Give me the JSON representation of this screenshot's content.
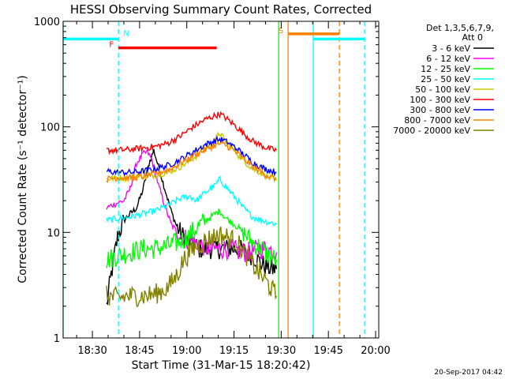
{
  "chart_data": {
    "type": "line",
    "title": "HESSI Observing Summary Count Rates, Corrected",
    "xlabel": "Start Time (31-Mar-15 18:20:42)",
    "ylabel": "Corrected Count Rate (s⁻¹ detector⁻¹)",
    "y_scale": "log",
    "ylim": [
      1,
      1000
    ],
    "xlim_minutes": [
      20.7,
      121
    ],
    "x_ticks": [
      {
        "label": "18:30",
        "minute": 30
      },
      {
        "label": "18:45",
        "minute": 45
      },
      {
        "label": "19:00",
        "minute": 60
      },
      {
        "label": "19:15",
        "minute": 75
      },
      {
        "label": "19:30",
        "minute": 90
      },
      {
        "label": "19:45",
        "minute": 105
      },
      {
        "label": "20:00",
        "minute": 120
      }
    ],
    "y_ticks": [
      {
        "label": "1",
        "value": 1
      },
      {
        "label": "10",
        "value": 10
      },
      {
        "label": "100",
        "value": 100
      },
      {
        "label": "1000",
        "value": 1000
      }
    ],
    "legend_title_lines": [
      "Det 1,3,5,6,7,9,",
      "Att 0"
    ],
    "legend_placement": "right",
    "series": [
      {
        "name": "3 - 6 keV",
        "color": "#000000",
        "points": [
          [
            34.5,
            2.0
          ],
          [
            36,
            4
          ],
          [
            38,
            9
          ],
          [
            40,
            13
          ],
          [
            42,
            15
          ],
          [
            44,
            17
          ],
          [
            46,
            25
          ],
          [
            48,
            45
          ],
          [
            49.5,
            60
          ],
          [
            51,
            42
          ],
          [
            53,
            26
          ],
          [
            55,
            16
          ],
          [
            57,
            11
          ],
          [
            59,
            9
          ],
          [
            61,
            8
          ],
          [
            64,
            7
          ],
          [
            67,
            7
          ],
          [
            70,
            7
          ],
          [
            73,
            7
          ],
          [
            76,
            7
          ],
          [
            79,
            6.5
          ],
          [
            81,
            6
          ],
          [
            84,
            5
          ],
          [
            87,
            4.5
          ],
          [
            88.5,
            4.5
          ]
        ]
      },
      {
        "name": "6 - 12 keV",
        "color": "#ff00ff",
        "points": [
          [
            34.5,
            17
          ],
          [
            36,
            18
          ],
          [
            38,
            19
          ],
          [
            40,
            20
          ],
          [
            42,
            26
          ],
          [
            44,
            45
          ],
          [
            46,
            55
          ],
          [
            47.5,
            58
          ],
          [
            49,
            48
          ],
          [
            51,
            28
          ],
          [
            53,
            18
          ],
          [
            55,
            12
          ],
          [
            57,
            10
          ],
          [
            59,
            9
          ],
          [
            62,
            8
          ],
          [
            65,
            7.5
          ],
          [
            68,
            7
          ],
          [
            71,
            7
          ],
          [
            74,
            7
          ],
          [
            77,
            6.5
          ],
          [
            80,
            6.5
          ],
          [
            83,
            7
          ],
          [
            85,
            7
          ],
          [
            88.5,
            6.5
          ]
        ]
      },
      {
        "name": "12 - 25 keV",
        "color": "#00ff00",
        "points": [
          [
            34.5,
            5.5
          ],
          [
            38,
            6
          ],
          [
            42,
            6.5
          ],
          [
            46,
            7
          ],
          [
            50,
            7
          ],
          [
            54,
            7.5
          ],
          [
            57,
            8
          ],
          [
            60,
            9
          ],
          [
            63,
            11
          ],
          [
            66,
            13
          ],
          [
            69,
            15
          ],
          [
            70.5,
            16
          ],
          [
            72,
            14
          ],
          [
            75,
            12
          ],
          [
            78,
            10
          ],
          [
            81,
            8
          ],
          [
            84,
            7
          ],
          [
            86,
            6
          ],
          [
            88.5,
            5.5
          ]
        ]
      },
      {
        "name": "25 - 50 keV",
        "color": "#00ffff",
        "points": [
          [
            34.5,
            13
          ],
          [
            38,
            13.5
          ],
          [
            42,
            14
          ],
          [
            46,
            15
          ],
          [
            50,
            16
          ],
          [
            54,
            18
          ],
          [
            58,
            21
          ],
          [
            61,
            22
          ],
          [
            63,
            20
          ],
          [
            66,
            24
          ],
          [
            69,
            28
          ],
          [
            70.5,
            32
          ],
          [
            72,
            28
          ],
          [
            75,
            22
          ],
          [
            78,
            17
          ],
          [
            81,
            14
          ],
          [
            84,
            13
          ],
          [
            86,
            12.5
          ],
          [
            88.5,
            12
          ]
        ]
      },
      {
        "name": "50 - 100 keV",
        "color": "#c8c800",
        "points": [
          [
            34.5,
            32
          ],
          [
            38,
            33
          ],
          [
            42,
            33
          ],
          [
            46,
            34
          ],
          [
            50,
            35
          ],
          [
            54,
            37
          ],
          [
            58,
            42
          ],
          [
            62,
            50
          ],
          [
            66,
            62
          ],
          [
            69,
            75
          ],
          [
            70.5,
            88
          ],
          [
            72,
            75
          ],
          [
            75,
            60
          ],
          [
            78,
            48
          ],
          [
            81,
            40
          ],
          [
            84,
            36
          ],
          [
            86,
            33
          ],
          [
            88.5,
            31
          ]
        ]
      },
      {
        "name": "100 - 300 keV",
        "color": "#ff0000",
        "points": [
          [
            34.5,
            60
          ],
          [
            38,
            60
          ],
          [
            42,
            61
          ],
          [
            46,
            63
          ],
          [
            50,
            65
          ],
          [
            54,
            70
          ],
          [
            58,
            82
          ],
          [
            62,
            100
          ],
          [
            66,
            118
          ],
          [
            69,
            128
          ],
          [
            70.5,
            132
          ],
          [
            72,
            124
          ],
          [
            75,
            105
          ],
          [
            78,
            87
          ],
          [
            81,
            73
          ],
          [
            84,
            66
          ],
          [
            86,
            62
          ],
          [
            88.5,
            60
          ]
        ]
      },
      {
        "name": "300 - 800 keV",
        "color": "#0000ff",
        "points": [
          [
            34.5,
            38
          ],
          [
            38,
            37
          ],
          [
            42,
            37
          ],
          [
            46,
            38
          ],
          [
            50,
            40
          ],
          [
            54,
            43
          ],
          [
            58,
            49
          ],
          [
            62,
            58
          ],
          [
            66,
            68
          ],
          [
            69,
            74
          ],
          [
            70.5,
            76
          ],
          [
            72,
            74
          ],
          [
            75,
            65
          ],
          [
            78,
            55
          ],
          [
            81,
            46
          ],
          [
            84,
            41
          ],
          [
            86,
            39
          ],
          [
            88.5,
            37
          ]
        ]
      },
      {
        "name": "800 - 7000 keV",
        "color": "#ff8000",
        "points": [
          [
            34.5,
            32
          ],
          [
            38,
            33
          ],
          [
            42,
            33
          ],
          [
            46,
            34
          ],
          [
            50,
            36
          ],
          [
            54,
            39
          ],
          [
            58,
            45
          ],
          [
            62,
            53
          ],
          [
            66,
            61
          ],
          [
            69,
            67
          ],
          [
            70.5,
            69
          ],
          [
            72,
            68
          ],
          [
            75,
            60
          ],
          [
            78,
            50
          ],
          [
            81,
            42
          ],
          [
            84,
            37
          ],
          [
            86,
            34
          ],
          [
            88.5,
            32
          ]
        ]
      },
      {
        "name": "7000 - 20000 keV",
        "color": "#808000",
        "points": [
          [
            34.5,
            2.5
          ],
          [
            38,
            2.4
          ],
          [
            42,
            2.5
          ],
          [
            46,
            2.5
          ],
          [
            50,
            2.6
          ],
          [
            54,
            3
          ],
          [
            57,
            4
          ],
          [
            59,
            5.5
          ],
          [
            62,
            7
          ],
          [
            65,
            8
          ],
          [
            68,
            9
          ],
          [
            70.5,
            9.5
          ],
          [
            73,
            9
          ],
          [
            76,
            8
          ],
          [
            79,
            6
          ],
          [
            82,
            4.5
          ],
          [
            85,
            3.5
          ],
          [
            88.5,
            2.5
          ]
        ]
      }
    ],
    "annotations": [
      {
        "label": "F",
        "color": "#ff0000",
        "y": 560,
        "start_minute": 38.3,
        "end_minute": 69.5
      },
      {
        "label": "N",
        "color": "#00ffff",
        "y": 680,
        "start_minute": 20.7,
        "end_minute": 38.3
      },
      {
        "label": "S",
        "color": "#ff8000",
        "y": 760,
        "start_minute": 92.2,
        "end_minute": 108.5
      }
    ],
    "attenuator_segments": [
      {
        "color": "#00ffff",
        "y": 680,
        "start_minute": 100.2,
        "end_minute": 116.5
      }
    ],
    "vertical_markers": [
      {
        "color": "#00ffff",
        "minute": 20.7,
        "style": "solid"
      },
      {
        "color": "#00ffff",
        "minute": 38.3,
        "style": "dashed"
      },
      {
        "color": "#00ff00",
        "minute": 89.2,
        "style": "solid"
      },
      {
        "color": "#ff8000",
        "minute": 92.2,
        "style": "solid"
      },
      {
        "color": "#00ffff",
        "minute": 100.2,
        "style": "solid"
      },
      {
        "color": "#ff8000",
        "minute": 108.5,
        "style": "dashed"
      },
      {
        "color": "#00ffff",
        "minute": 116.5,
        "style": "dashed"
      }
    ]
  },
  "footer": {
    "timestamp": "20-Sep-2017 04:42"
  }
}
